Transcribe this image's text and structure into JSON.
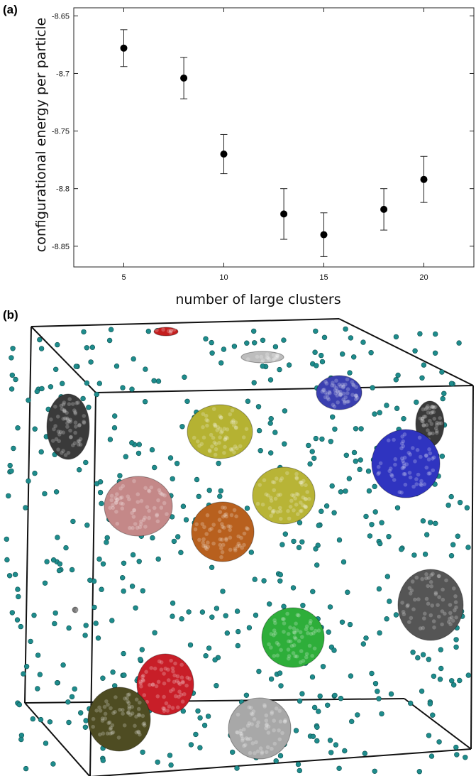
{
  "panels": {
    "a_label": "(a)",
    "b_label": "(b)"
  },
  "chart_data": {
    "type": "scatter",
    "xlabel": "number of large clusters",
    "ylabel": "configurational energy per particle",
    "xlim": [
      2.5,
      22.5
    ],
    "ylim": [
      -8.868,
      -8.643
    ],
    "x_ticks": [
      5,
      10,
      15,
      20
    ],
    "y_ticks": [
      -8.65,
      -8.7,
      -8.75,
      -8.8,
      -8.85
    ],
    "x_tick_labels": [
      "5",
      "10",
      "15",
      "20"
    ],
    "y_tick_labels": [
      "-8.65",
      "-8.7",
      "-8.75",
      "-8.8",
      "-8.85"
    ],
    "grid": false,
    "points": [
      {
        "x": 5,
        "y": -8.678,
        "err": 0.016
      },
      {
        "x": 8,
        "y": -8.704,
        "err": 0.018
      },
      {
        "x": 10,
        "y": -8.77,
        "err": 0.017
      },
      {
        "x": 13,
        "y": -8.822,
        "err": 0.022
      },
      {
        "x": 15,
        "y": -8.84,
        "err": 0.019
      },
      {
        "x": 18,
        "y": -8.818,
        "err": 0.018
      },
      {
        "x": 20,
        "y": -8.792,
        "err": 0.02
      }
    ],
    "marker_color": "#000000"
  },
  "simulation": {
    "particle_color": "#1e8c8c",
    "box_color": "#111111",
    "clusters": [
      {
        "name": "cluster-red-small",
        "color": "#c41e1e"
      },
      {
        "name": "cluster-light-gray-small",
        "color": "#bdbdbd"
      },
      {
        "name": "cluster-blue-top",
        "color": "#3a3fb0"
      },
      {
        "name": "cluster-dark-gray-left",
        "color": "#3a3a3a"
      },
      {
        "name": "cluster-dark-gray-right",
        "color": "#3a3a3a"
      },
      {
        "name": "cluster-yellow-top",
        "color": "#b5b232"
      },
      {
        "name": "cluster-blue-large",
        "color": "#2f34c0"
      },
      {
        "name": "cluster-pink",
        "color": "#c48888"
      },
      {
        "name": "cluster-yellow-middle",
        "color": "#b8b436"
      },
      {
        "name": "cluster-orange",
        "color": "#b8601e"
      },
      {
        "name": "cluster-gray-right",
        "color": "#555555"
      },
      {
        "name": "cluster-green",
        "color": "#2eae3a"
      },
      {
        "name": "cluster-red-bottom",
        "color": "#c81e28"
      },
      {
        "name": "cluster-olive",
        "color": "#4e4c22"
      },
      {
        "name": "cluster-light-gray-bottom",
        "color": "#a8a8a8"
      },
      {
        "name": "cluster-tiny-gray",
        "color": "#777777"
      }
    ]
  }
}
